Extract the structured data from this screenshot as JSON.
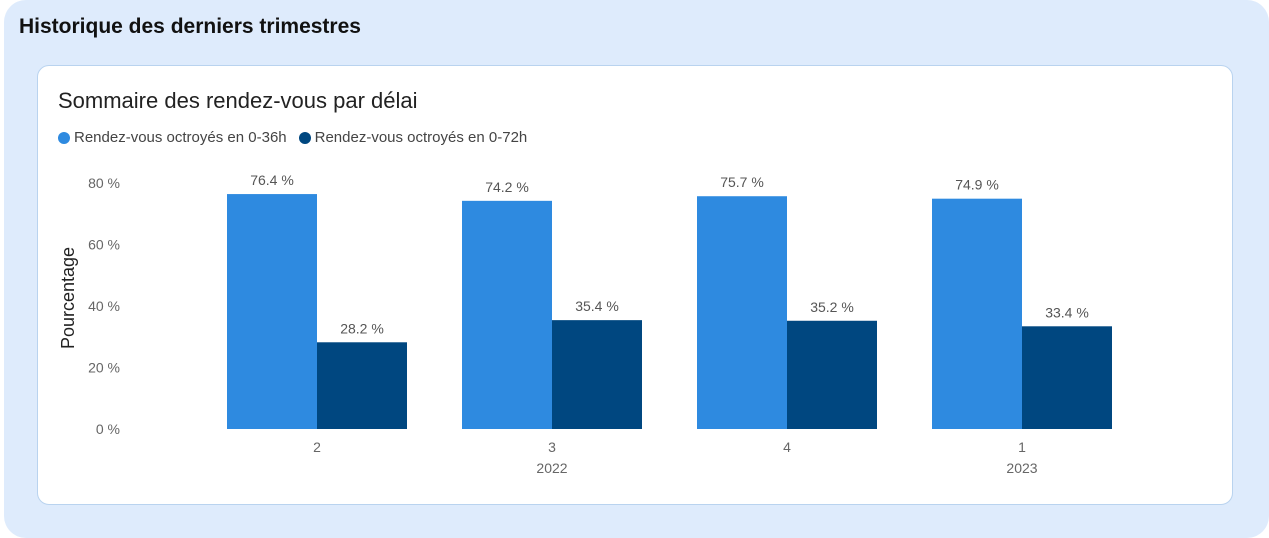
{
  "section": {
    "title": "Historique des derniers trimestres"
  },
  "chart_data": {
    "type": "bar",
    "title": "Sommaire des rendez-vous par délai",
    "ylabel": "Pourcentage",
    "xlabel": "",
    "ylim": [
      0,
      80
    ],
    "yticks": [
      0,
      20,
      40,
      60,
      80
    ],
    "ytick_labels": [
      "0 %",
      "20 %",
      "40 %",
      "60 %",
      "80 %"
    ],
    "grid": false,
    "legend_position": "top-left",
    "categories": [
      {
        "quarter": "2",
        "year": ""
      },
      {
        "quarter": "3",
        "year": "2022"
      },
      {
        "quarter": "4",
        "year": ""
      },
      {
        "quarter": "1",
        "year": "2023"
      }
    ],
    "series": [
      {
        "name": "Rendez-vous octroyés en 0-36h",
        "color": "#2e8ae0",
        "values": [
          76.4,
          74.2,
          75.7,
          74.9
        ],
        "labels": [
          "76.4 %",
          "74.2 %",
          "75.7 %",
          "74.9 %"
        ]
      },
      {
        "name": "Rendez-vous octroyés en 0-72h",
        "color": "#004780",
        "values": [
          28.2,
          35.4,
          35.2,
          33.4
        ],
        "labels": [
          "28.2 %",
          "35.4 %",
          "35.2 %",
          "33.4 %"
        ]
      }
    ]
  }
}
